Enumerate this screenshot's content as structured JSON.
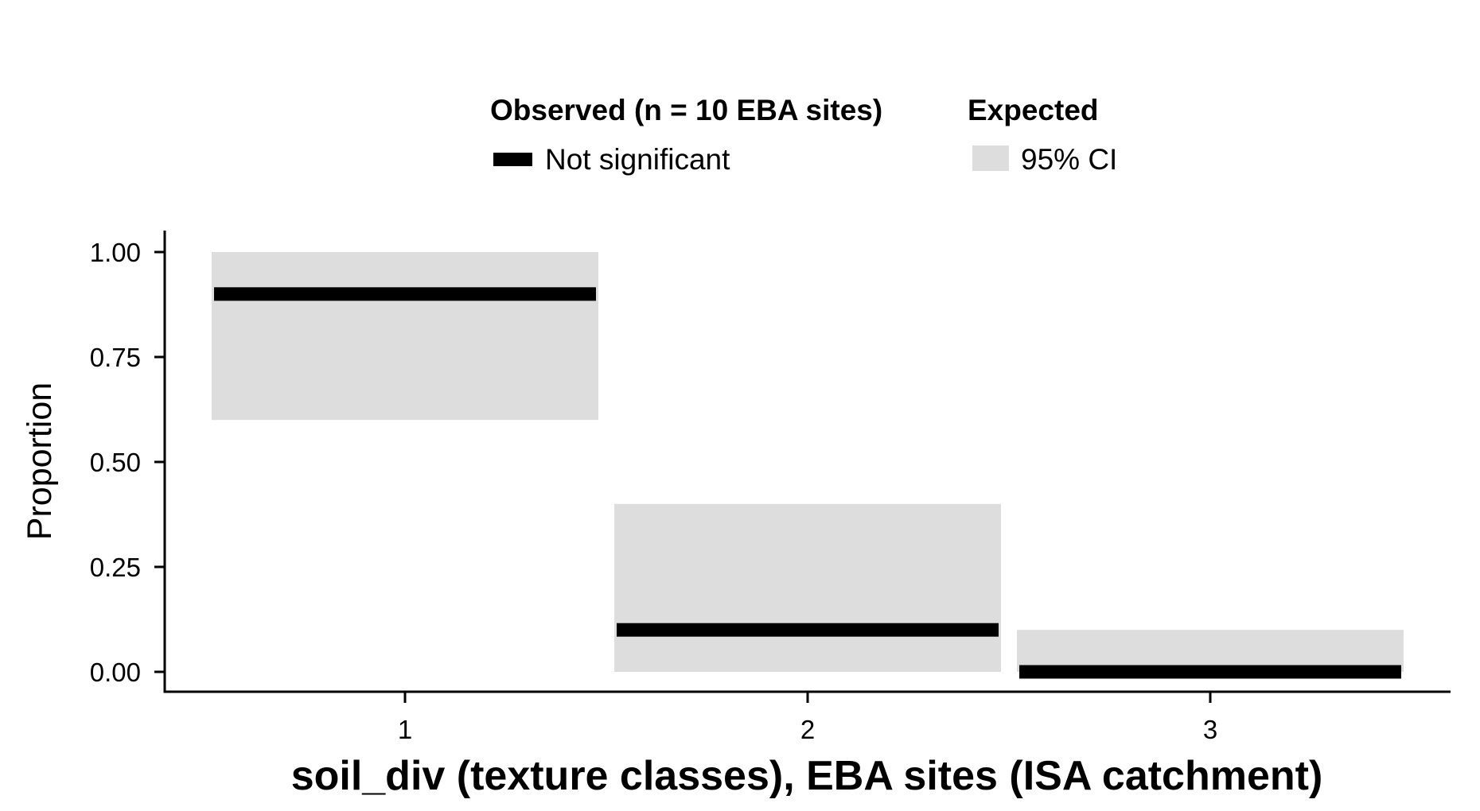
{
  "chart_data": {
    "type": "bar",
    "categories": [
      "1",
      "2",
      "3"
    ],
    "ylabel": "Proportion",
    "xlabel": "soil_div (texture classes), EBA sites (ISA catchment)",
    "ylim": [
      0,
      1
    ],
    "yticks": [
      "1.00",
      "0.75",
      "0.50",
      "0.25",
      "0.00"
    ],
    "ytick_values": [
      1.0,
      0.75,
      0.5,
      0.25,
      0.0
    ],
    "observed": [
      0.9,
      0.1,
      0.0
    ],
    "expected_ci": [
      {
        "low": 0.6,
        "high": 1.0
      },
      {
        "low": 0.0,
        "high": 0.4
      },
      {
        "low": 0.0,
        "high": 0.1
      }
    ],
    "grid": false,
    "legend": {
      "placement": "top",
      "observed_title": "Observed (n = 10 EBA sites)",
      "observed_item": "Not significant",
      "expected_title": "Expected",
      "expected_item": "95% CI"
    },
    "colors": {
      "observed": "#000000",
      "ci": "#dddddd",
      "axis": "#000000"
    }
  }
}
